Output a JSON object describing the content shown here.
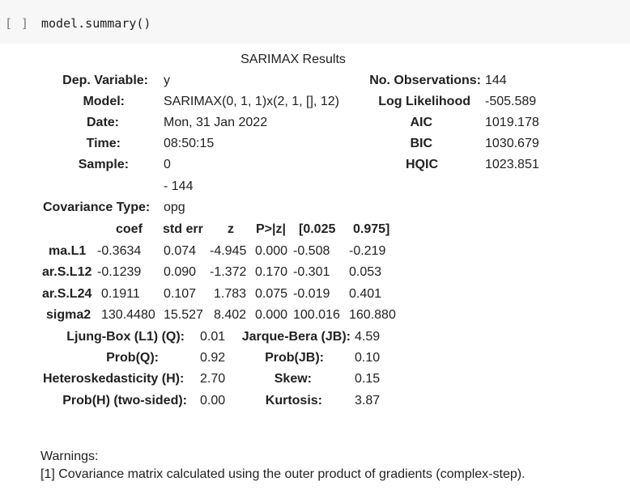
{
  "cell": {
    "prompt": "[ ]",
    "code": "model.summary()"
  },
  "title": "SARIMAX Results",
  "header": {
    "dep_label": "Dep. Variable:",
    "dep_value": "y",
    "model_label": "Model:",
    "model_value": "SARIMAX(0, 1, 1)x(2, 1, [], 12)",
    "date_label": "Date:",
    "date_value": "Mon, 31 Jan 2022",
    "time_label": "Time:",
    "time_value": "08:50:15",
    "sample_label": "Sample:",
    "sample_value1": "0",
    "sample_value2": "- 144",
    "cov_label": "Covariance Type:",
    "cov_value": "opg",
    "nobs_label": "No. Observations:",
    "nobs_value": "144",
    "ll_label": "Log Likelihood",
    "ll_value": "-505.589",
    "aic_label": "AIC",
    "aic_value": "1019.178",
    "bic_label": "BIC",
    "bic_value": "1030.679",
    "hqic_label": "HQIC",
    "hqic_value": "1023.851"
  },
  "coef_table": {
    "columns": [
      "coef",
      "std err",
      "z",
      "P>|z|",
      "[0.025",
      "0.975]"
    ],
    "rows": [
      {
        "name": "ma.L1",
        "values": [
          "-0.3634",
          "0.074",
          "-4.945",
          "0.000",
          "-0.508",
          "-0.219"
        ]
      },
      {
        "name": "ar.S.L12",
        "values": [
          "-0.1239",
          "0.090",
          "-1.372",
          "0.170",
          "-0.301",
          "0.053"
        ]
      },
      {
        "name": "ar.S.L24",
        "values": [
          "0.1911",
          "0.107",
          "1.783",
          "0.075",
          "-0.019",
          "0.401"
        ]
      },
      {
        "name": "sigma2",
        "values": [
          "130.4480",
          "15.527",
          "8.402",
          "0.000",
          "100.016",
          "160.880"
        ]
      }
    ]
  },
  "diagnostics": {
    "lb_label": "Ljung-Box (L1) (Q):",
    "lb_value": "0.01",
    "jb_label": "Jarque-Bera (JB):",
    "jb_value": "4.59",
    "probq_label": "Prob(Q):",
    "probq_value": "0.92",
    "probjb_label": "Prob(JB):",
    "probjb_value": "0.10",
    "het_label": "Heteroskedasticity (H):",
    "het_value": "2.70",
    "skew_label": "Skew:",
    "skew_value": "0.15",
    "probh_label": "Prob(H) (two-sided):",
    "probh_value": "0.00",
    "kurt_label": "Kurtosis:",
    "kurt_value": "3.87"
  },
  "warnings": {
    "title": "Warnings:",
    "items": [
      "[1] Covariance matrix calculated using the outer product of gradients (complex-step)."
    ]
  }
}
